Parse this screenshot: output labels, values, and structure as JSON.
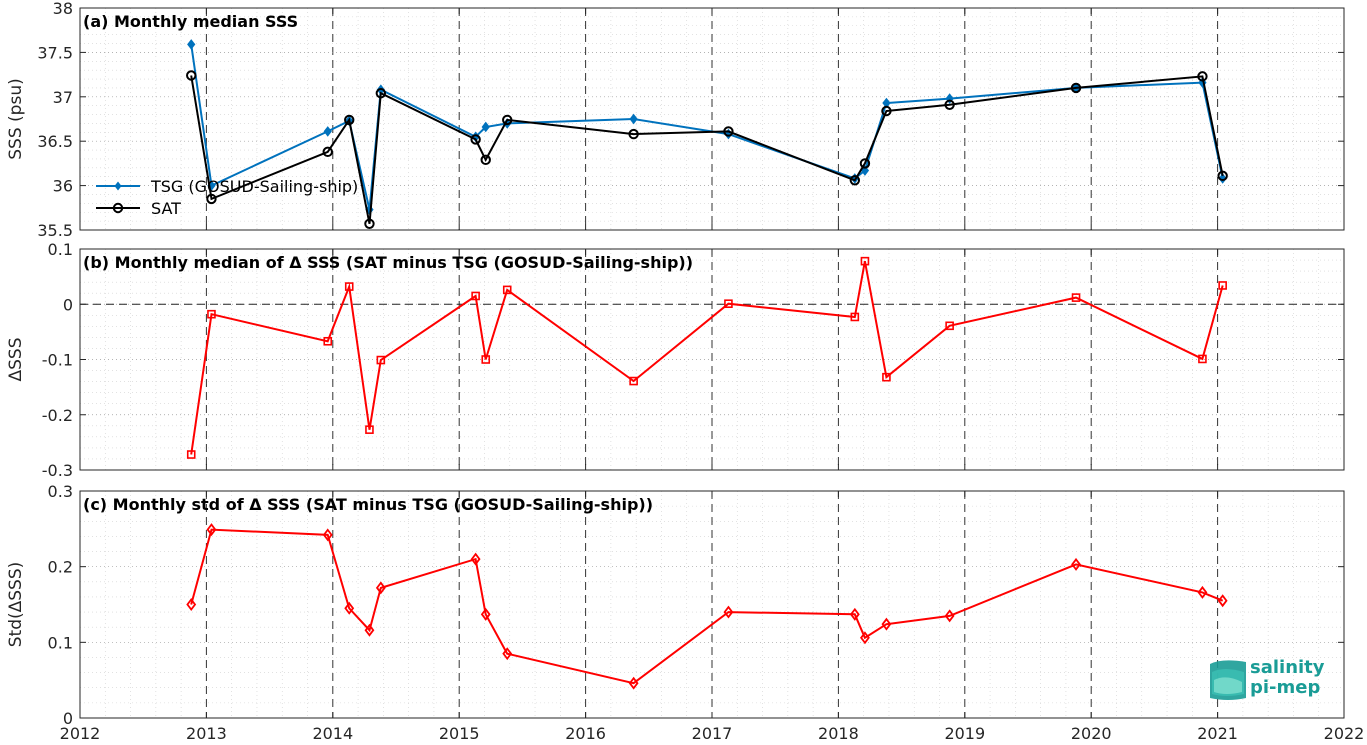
{
  "chart_data": [
    {
      "type": "line",
      "title": "(a) Monthly median SSS",
      "ylabel": "SSS (psu)",
      "xlim": [
        2012,
        2022
      ],
      "ylim": [
        35.5,
        38
      ],
      "yticks": [
        35.5,
        36,
        36.5,
        37,
        37.5,
        38
      ],
      "ytick_labels": [
        "35.5",
        "36",
        "36.5",
        "37",
        "37.5",
        "38"
      ],
      "grid": true,
      "legend_position": "middle-left",
      "series": [
        {
          "name": "TSG (GOSUD-Sailing-ship)",
          "color": "#0072bd",
          "marker": "diamond-filled",
          "x": [
            2012.88,
            2013.04,
            2013.96,
            2014.13,
            2014.29,
            2014.38,
            2015.13,
            2015.21,
            2015.38,
            2016.38,
            2017.13,
            2018.13,
            2018.21,
            2018.38,
            2018.88,
            2019.88,
            2020.88,
            2021.04
          ],
          "y": [
            37.59,
            36.0,
            36.61,
            36.73,
            35.73,
            37.08,
            36.55,
            36.66,
            36.7,
            36.75,
            36.58,
            36.08,
            36.17,
            36.93,
            36.98,
            37.1,
            37.16,
            36.08
          ]
        },
        {
          "name": "SAT",
          "color": "#000000",
          "marker": "circle-open",
          "x": [
            2012.88,
            2013.04,
            2013.96,
            2014.13,
            2014.29,
            2014.38,
            2015.13,
            2015.21,
            2015.38,
            2016.38,
            2017.13,
            2018.13,
            2018.21,
            2018.38,
            2018.88,
            2019.88,
            2020.88,
            2021.04
          ],
          "y": [
            37.24,
            35.85,
            36.38,
            36.74,
            35.57,
            37.04,
            36.52,
            36.29,
            36.74,
            36.58,
            36.61,
            36.06,
            36.25,
            36.84,
            36.91,
            37.1,
            37.23,
            36.11
          ]
        }
      ]
    },
    {
      "type": "line",
      "title": "(b) Monthly median of Δ SSS (SAT minus TSG (GOSUD-Sailing-ship))",
      "ylabel": "ΔSSS",
      "xlim": [
        2012,
        2022
      ],
      "ylim": [
        -0.3,
        0.1
      ],
      "yticks": [
        -0.3,
        -0.2,
        -0.1,
        0,
        0.1
      ],
      "ytick_labels": [
        "-0.3",
        "-0.2",
        "-0.1",
        "0",
        "0.1"
      ],
      "zero_line": true,
      "grid": true,
      "series": [
        {
          "color": "#ff0000",
          "marker": "square-open",
          "x": [
            2012.88,
            2013.04,
            2013.96,
            2014.13,
            2014.29,
            2014.38,
            2015.13,
            2015.21,
            2015.38,
            2016.38,
            2017.13,
            2018.13,
            2018.21,
            2018.38,
            2018.88,
            2019.88,
            2020.88,
            2021.04
          ],
          "y": [
            -0.272,
            -0.018,
            -0.067,
            0.032,
            -0.227,
            -0.101,
            0.015,
            -0.1,
            0.026,
            -0.139,
            0.001,
            -0.023,
            0.078,
            -0.132,
            -0.039,
            0.012,
            -0.099,
            0.034
          ]
        }
      ]
    },
    {
      "type": "line",
      "title": "(c) Monthly std of Δ SSS (SAT minus TSG (GOSUD-Sailing-ship))",
      "ylabel": "Std(ΔSSS)",
      "xlim": [
        2012,
        2022
      ],
      "ylim": [
        0,
        0.3
      ],
      "yticks": [
        0,
        0.1,
        0.2,
        0.3
      ],
      "ytick_labels": [
        "0",
        "0.1",
        "0.2",
        "0.3"
      ],
      "xticks": [
        2012,
        2013,
        2014,
        2015,
        2016,
        2017,
        2018,
        2019,
        2020,
        2021,
        2022
      ],
      "xtick_labels": [
        "2012",
        "2013",
        "2014",
        "2015",
        "2016",
        "2017",
        "2018",
        "2019",
        "2020",
        "2021",
        "2022"
      ],
      "grid": true,
      "series": [
        {
          "color": "#ff0000",
          "marker": "diamond-open",
          "x": [
            2012.88,
            2013.04,
            2013.96,
            2014.13,
            2014.29,
            2014.38,
            2015.13,
            2015.21,
            2015.38,
            2016.38,
            2017.13,
            2018.13,
            2018.21,
            2018.38,
            2018.88,
            2019.88,
            2020.88,
            2021.04
          ],
          "y": [
            0.15,
            0.249,
            0.242,
            0.145,
            0.116,
            0.172,
            0.21,
            0.137,
            0.085,
            0.046,
            0.14,
            0.137,
            0.106,
            0.124,
            0.135,
            0.203,
            0.166,
            0.155
          ]
        }
      ]
    }
  ],
  "logo": {
    "line1": "salinity",
    "line2": "pi-mep",
    "color": "#1a9c96"
  }
}
